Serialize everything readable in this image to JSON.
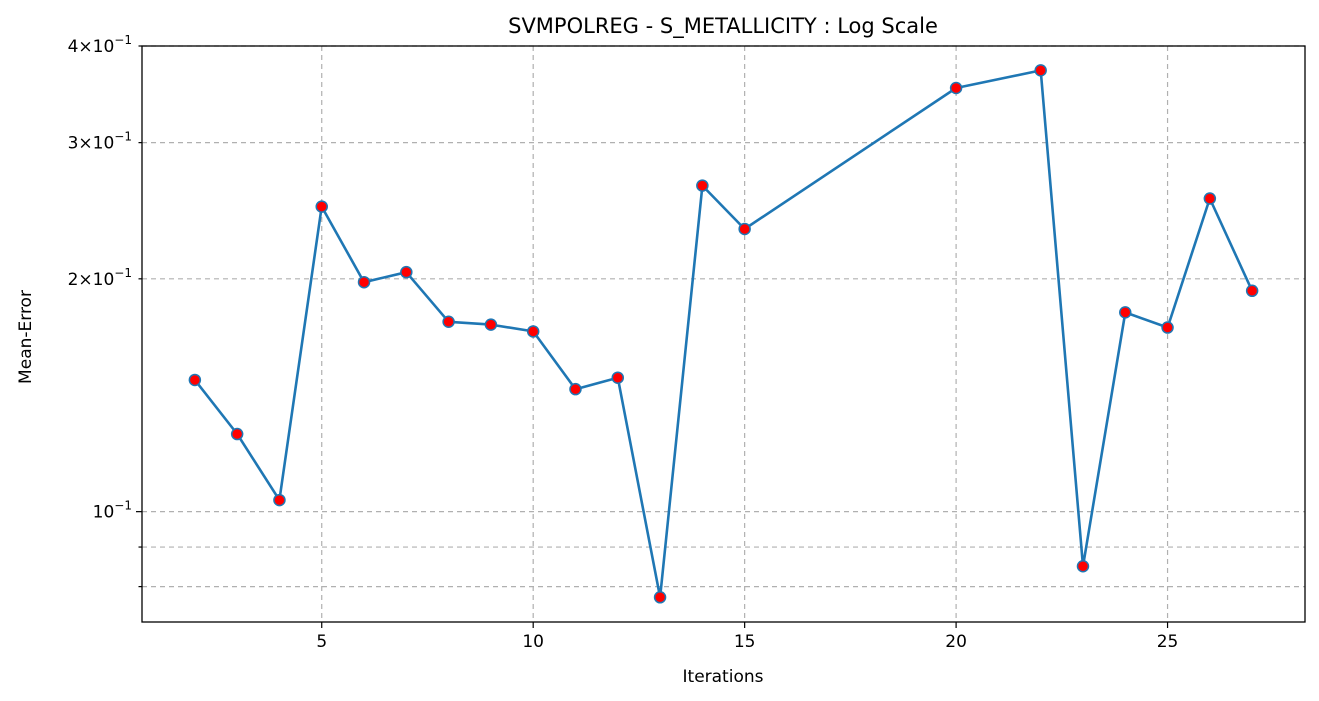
{
  "chart_data": {
    "type": "line",
    "title": "SVMPOLREG - S_METALLICITY : Log Scale",
    "xlabel": "Iterations",
    "ylabel": "Mean-Error",
    "yscale": "log",
    "grid": true,
    "xlim": [
      0.75,
      28.25
    ],
    "ylim": [
      0.072,
      0.4
    ],
    "xticks": [
      5,
      10,
      15,
      20,
      25
    ],
    "yticks_major": [
      {
        "value": 0.1,
        "base": "10",
        "exp": "−1"
      }
    ],
    "yticks_minor_labeled": [
      {
        "value": 0.2,
        "mant": "2",
        "base": "10",
        "exp": "−1"
      },
      {
        "value": 0.3,
        "mant": "3",
        "base": "10",
        "exp": "−1"
      },
      {
        "value": 0.4,
        "mant": "4",
        "base": "10",
        "exp": "−1"
      }
    ],
    "yticks_minor_unlabeled": [
      0.09,
      0.08
    ],
    "series": [
      {
        "line_color": "#1f77b4",
        "marker_face": "#ff0000",
        "marker_edge": "#1f77b4",
        "x": [
          2,
          3,
          4,
          5,
          6,
          7,
          8,
          9,
          10,
          11,
          12,
          13,
          14,
          15,
          20,
          22,
          23,
          24,
          25,
          26,
          27
        ],
        "y": [
          0.148,
          0.126,
          0.1035,
          0.248,
          0.198,
          0.204,
          0.176,
          0.1745,
          0.171,
          0.144,
          0.149,
          0.0775,
          0.264,
          0.232,
          0.353,
          0.372,
          0.085,
          0.181,
          0.173,
          0.254,
          0.193
        ]
      }
    ]
  }
}
